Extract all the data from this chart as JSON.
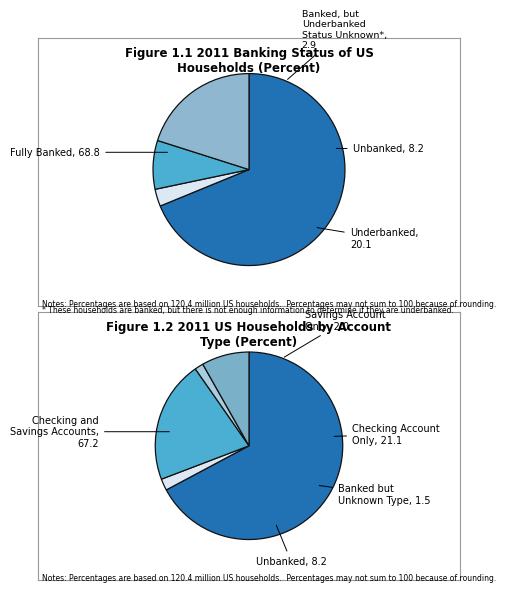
{
  "fig1_title": "Figure 1.1 2011 Banking Status of US\nHouseholds (Percent)",
  "fig1_values": [
    68.8,
    2.9,
    8.2,
    20.1
  ],
  "fig1_colors": [
    "#2171b5",
    "#dce9f5",
    "#4bafd4",
    "#8fb8d0"
  ],
  "fig1_startangle": 90,
  "fig1_note1": "Notes: Percentages are based on 120.4 million US households.  Percentages may not sum to 100 because of rounding.",
  "fig1_note2": "* These households are banked, but there is not enough information to determine if they are underbanked.",
  "fig2_title": "Figure 1.2 2011 US Households by Account\nType (Percent)",
  "fig2_values": [
    67.2,
    2.0,
    21.1,
    1.5,
    8.2
  ],
  "fig2_colors": [
    "#2171b5",
    "#dce9f5",
    "#4bafd4",
    "#a8cde0",
    "#7ab0c8"
  ],
  "fig2_startangle": 90,
  "fig2_note": "Notes: Percentages are based on 120.4 million US households.  Percentages may not sum to 100 because of rounding."
}
